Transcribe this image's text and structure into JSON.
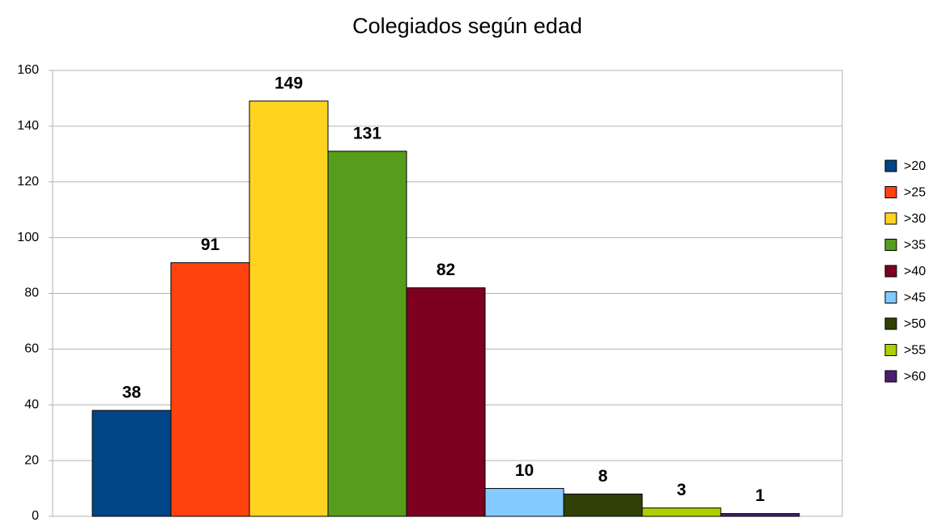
{
  "chart_data": {
    "type": "bar",
    "title": "Colegiados según edad",
    "series": [
      {
        "name": ">20",
        "color": "#004586",
        "values": [
          38
        ]
      },
      {
        "name": ">25",
        "color": "#ff420e",
        "values": [
          91
        ]
      },
      {
        "name": ">30",
        "color": "#ffd320",
        "values": [
          149
        ]
      },
      {
        "name": ">35",
        "color": "#579d1c",
        "values": [
          131
        ]
      },
      {
        "name": ">40",
        "color": "#7e0021",
        "values": [
          82
        ]
      },
      {
        "name": ">45",
        "color": "#83caff",
        "values": [
          10
        ]
      },
      {
        "name": ">50",
        "color": "#314004",
        "values": [
          8
        ]
      },
      {
        "name": ">55",
        "color": "#aecf00",
        "values": [
          3
        ]
      },
      {
        "name": ">60",
        "color": "#4b1f6f",
        "values": [
          1
        ]
      }
    ],
    "ylim": [
      0,
      160
    ],
    "yticks": [
      0,
      20,
      40,
      60,
      80,
      100,
      120,
      140,
      160
    ],
    "grid": true,
    "legend": "right"
  }
}
